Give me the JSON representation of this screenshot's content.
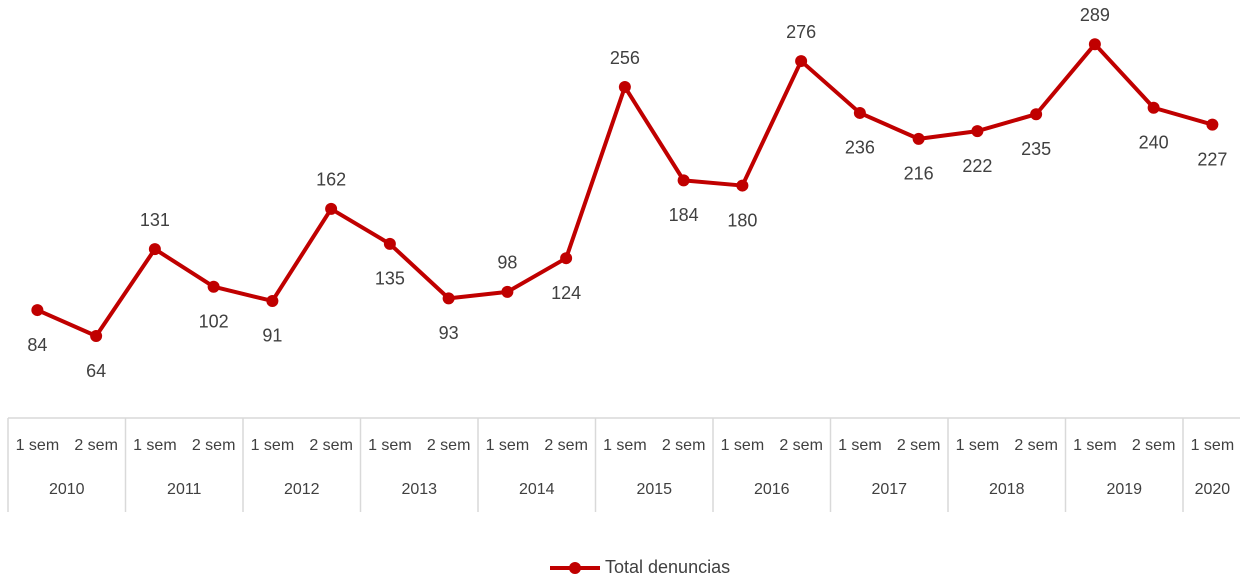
{
  "chart_data": {
    "type": "line",
    "categories": [
      "1 sem",
      "2 sem",
      "1 sem",
      "2 sem",
      "1 sem",
      "2 sem",
      "1 sem",
      "2 sem",
      "1 sem",
      "2 sem",
      "1 sem",
      "2 sem",
      "1 sem",
      "2 sem",
      "1 sem",
      "2 sem",
      "1 sem",
      "2 sem",
      "1 sem",
      "2 sem",
      "1 sem"
    ],
    "category_groups": [
      "2010",
      "2010",
      "2011",
      "2011",
      "2012",
      "2012",
      "2013",
      "2013",
      "2014",
      "2014",
      "2015",
      "2015",
      "2016",
      "2016",
      "2017",
      "2017",
      "2018",
      "2018",
      "2019",
      "2019",
      "2020"
    ],
    "series": [
      {
        "name": "Total denuncias",
        "color": "#c00000",
        "values": [
          84,
          64,
          131,
          102,
          91,
          162,
          135,
          93,
          98,
          124,
          256,
          184,
          180,
          276,
          236,
          216,
          222,
          235,
          289,
          240,
          227
        ]
      }
    ],
    "ylim": [
      0,
      320
    ],
    "legend": "bottom"
  }
}
